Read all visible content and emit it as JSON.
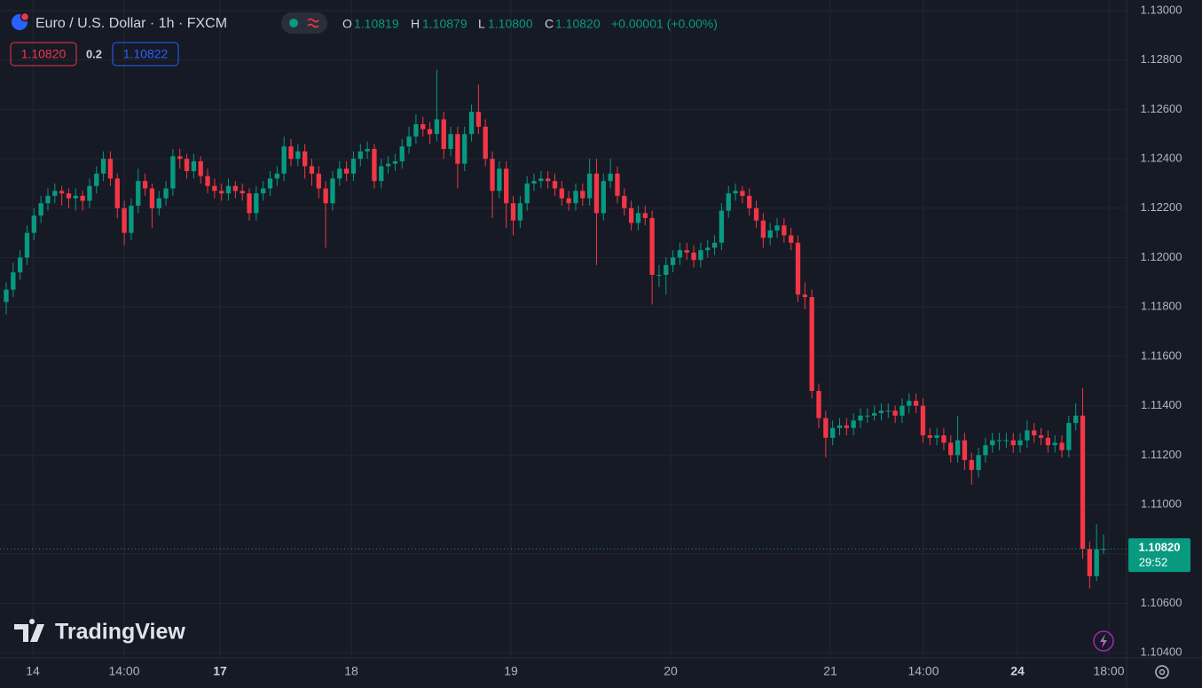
{
  "chart_data": {
    "type": "candlestick",
    "title": "Euro / U.S. Dollar · 1h · FXCM",
    "legend": {
      "open_label": "O",
      "open": "1.10819",
      "high_label": "H",
      "high": "1.10879",
      "low_label": "L",
      "low": "1.10800",
      "close_label": "C",
      "close": "1.10820",
      "change": "+0.00001 (+0.00%)"
    },
    "bid": "1.10820",
    "spread": "0.2",
    "ask": "1.10822",
    "last_price_label": "1.10820",
    "countdown": "29:52",
    "brand": "TradingView",
    "up_color": "#089981",
    "down_color": "#f23645",
    "grid": true,
    "ylim": [
      1.10379,
      1.13043
    ],
    "yticks": [
      {
        "value": 1.13,
        "label": "1.13000"
      },
      {
        "value": 1.128,
        "label": "1.12800"
      },
      {
        "value": 1.126,
        "label": "1.12600"
      },
      {
        "value": 1.124,
        "label": "1.12400"
      },
      {
        "value": 1.122,
        "label": "1.12200"
      },
      {
        "value": 1.12,
        "label": "1.12000"
      },
      {
        "value": 1.118,
        "label": "1.11800"
      },
      {
        "value": 1.116,
        "label": "1.11600"
      },
      {
        "value": 1.114,
        "label": "1.11400"
      },
      {
        "value": 1.112,
        "label": "1.11200"
      },
      {
        "value": 1.11,
        "label": "1.11000"
      },
      {
        "value": 1.108,
        "label": "1.10800"
      },
      {
        "value": 1.106,
        "label": "1.10600"
      },
      {
        "value": 1.104,
        "label": "1.10400"
      }
    ],
    "x_labels": [
      "14",
      "14:00",
      "17",
      "18",
      "19",
      "20",
      "21",
      "14:00",
      "24",
      "18:00"
    ],
    "candles": [
      [
        1.1182,
        1.119,
        1.1177,
        1.1187
      ],
      [
        1.1187,
        1.1198,
        1.1184,
        1.1194
      ],
      [
        1.1194,
        1.1203,
        1.1191,
        1.12
      ],
      [
        1.12,
        1.1213,
        1.1197,
        1.121
      ],
      [
        1.121,
        1.122,
        1.1207,
        1.1217
      ],
      [
        1.1217,
        1.1225,
        1.1214,
        1.1222
      ],
      [
        1.1222,
        1.1228,
        1.1219,
        1.1225
      ],
      [
        1.1225,
        1.123,
        1.1222,
        1.1227
      ],
      [
        1.1227,
        1.1229,
        1.1221,
        1.1226
      ],
      [
        1.1226,
        1.1228,
        1.122,
        1.1224
      ],
      [
        1.1224,
        1.1228,
        1.1219,
        1.1225
      ],
      [
        1.1225,
        1.1227,
        1.1219,
        1.1223
      ],
      [
        1.1223,
        1.1232,
        1.122,
        1.1229
      ],
      [
        1.1229,
        1.1237,
        1.1226,
        1.1234
      ],
      [
        1.1234,
        1.1243,
        1.1231,
        1.124
      ],
      [
        1.124,
        1.1243,
        1.1229,
        1.1232
      ],
      [
        1.1232,
        1.1234,
        1.1216,
        1.122
      ],
      [
        1.122,
        1.1223,
        1.1205,
        1.121
      ],
      [
        1.121,
        1.1224,
        1.1207,
        1.1221
      ],
      [
        1.1221,
        1.1236,
        1.1218,
        1.1231
      ],
      [
        1.1231,
        1.1234,
        1.1225,
        1.1228
      ],
      [
        1.1228,
        1.123,
        1.1212,
        1.122
      ],
      [
        1.122,
        1.1227,
        1.1217,
        1.1224
      ],
      [
        1.1224,
        1.1231,
        1.1221,
        1.1228
      ],
      [
        1.1228,
        1.1244,
        1.1225,
        1.1241
      ],
      [
        1.1241,
        1.1244,
        1.1236,
        1.124
      ],
      [
        1.124,
        1.1242,
        1.1232,
        1.1235
      ],
      [
        1.1235,
        1.1242,
        1.1232,
        1.1239
      ],
      [
        1.1239,
        1.1241,
        1.123,
        1.1233
      ],
      [
        1.1233,
        1.1236,
        1.1226,
        1.1229
      ],
      [
        1.1229,
        1.1232,
        1.1224,
        1.1227
      ],
      [
        1.1227,
        1.123,
        1.1223,
        1.1226
      ],
      [
        1.1226,
        1.1232,
        1.1223,
        1.1229
      ],
      [
        1.1229,
        1.1231,
        1.1224,
        1.1227
      ],
      [
        1.1227,
        1.123,
        1.1223,
        1.1226
      ],
      [
        1.1226,
        1.1228,
        1.1215,
        1.1218
      ],
      [
        1.1218,
        1.1229,
        1.1215,
        1.1226
      ],
      [
        1.1226,
        1.1231,
        1.1223,
        1.1228
      ],
      [
        1.1228,
        1.1235,
        1.1225,
        1.1232
      ],
      [
        1.1232,
        1.1237,
        1.1229,
        1.1234
      ],
      [
        1.1234,
        1.1249,
        1.1231,
        1.1245
      ],
      [
        1.1245,
        1.1248,
        1.1237,
        1.124
      ],
      [
        1.124,
        1.1246,
        1.1237,
        1.1243
      ],
      [
        1.1243,
        1.1246,
        1.1232,
        1.1237
      ],
      [
        1.1237,
        1.124,
        1.1229,
        1.1234
      ],
      [
        1.1234,
        1.1237,
        1.1224,
        1.1228
      ],
      [
        1.1228,
        1.1231,
        1.1204,
        1.1222
      ],
      [
        1.1222,
        1.1235,
        1.1219,
        1.1232
      ],
      [
        1.1232,
        1.1239,
        1.1229,
        1.1236
      ],
      [
        1.1236,
        1.1239,
        1.1231,
        1.1234
      ],
      [
        1.1234,
        1.1243,
        1.1231,
        1.124
      ],
      [
        1.124,
        1.1246,
        1.1237,
        1.1243
      ],
      [
        1.1243,
        1.1247,
        1.124,
        1.1244
      ],
      [
        1.1244,
        1.1246,
        1.1228,
        1.1231
      ],
      [
        1.1231,
        1.124,
        1.1228,
        1.1237
      ],
      [
        1.1237,
        1.1241,
        1.1234,
        1.1238
      ],
      [
        1.1238,
        1.1242,
        1.1235,
        1.1239
      ],
      [
        1.1239,
        1.1248,
        1.1236,
        1.1245
      ],
      [
        1.1245,
        1.1253,
        1.1242,
        1.1249
      ],
      [
        1.1249,
        1.1258,
        1.1246,
        1.1254
      ],
      [
        1.1254,
        1.1257,
        1.1249,
        1.1252
      ],
      [
        1.1252,
        1.1255,
        1.1246,
        1.125
      ],
      [
        1.125,
        1.1276,
        1.1247,
        1.1256
      ],
      [
        1.1256,
        1.1259,
        1.124,
        1.1244
      ],
      [
        1.1244,
        1.1253,
        1.1241,
        1.125
      ],
      [
        1.125,
        1.1253,
        1.1228,
        1.1238
      ],
      [
        1.1238,
        1.1253,
        1.1235,
        1.125
      ],
      [
        1.125,
        1.1262,
        1.1247,
        1.1259
      ],
      [
        1.1259,
        1.127,
        1.125,
        1.1253
      ],
      [
        1.1253,
        1.1256,
        1.1237,
        1.124
      ],
      [
        1.124,
        1.1243,
        1.1216,
        1.1227
      ],
      [
        1.1227,
        1.1239,
        1.1224,
        1.1236
      ],
      [
        1.1236,
        1.1239,
        1.1212,
        1.1222
      ],
      [
        1.1222,
        1.1225,
        1.1209,
        1.1215
      ],
      [
        1.1215,
        1.1225,
        1.1212,
        1.1222
      ],
      [
        1.1222,
        1.1233,
        1.1219,
        1.123
      ],
      [
        1.123,
        1.1234,
        1.1227,
        1.1231
      ],
      [
        1.1231,
        1.1235,
        1.1228,
        1.1232
      ],
      [
        1.1232,
        1.1235,
        1.1228,
        1.1231
      ],
      [
        1.1231,
        1.1234,
        1.1225,
        1.1228
      ],
      [
        1.1228,
        1.1231,
        1.1221,
        1.1224
      ],
      [
        1.1224,
        1.1227,
        1.1219,
        1.1222
      ],
      [
        1.1222,
        1.123,
        1.1219,
        1.1227
      ],
      [
        1.1227,
        1.123,
        1.1221,
        1.1224
      ],
      [
        1.1224,
        1.124,
        1.1221,
        1.1234
      ],
      [
        1.1234,
        1.124,
        1.1197,
        1.1218
      ],
      [
        1.1218,
        1.1234,
        1.1215,
        1.1231
      ],
      [
        1.1231,
        1.124,
        1.1228,
        1.1234
      ],
      [
        1.1234,
        1.1237,
        1.1222,
        1.1225
      ],
      [
        1.1225,
        1.1228,
        1.1217,
        1.122
      ],
      [
        1.122,
        1.1223,
        1.1211,
        1.1214
      ],
      [
        1.1214,
        1.1221,
        1.1211,
        1.1218
      ],
      [
        1.1218,
        1.1221,
        1.1213,
        1.1216
      ],
      [
        1.1216,
        1.1219,
        1.1181,
        1.1193
      ],
      [
        1.1193,
        1.1197,
        1.1188,
        1.1193
      ],
      [
        1.1193,
        1.12,
        1.1185,
        1.1197
      ],
      [
        1.1197,
        1.1203,
        1.1194,
        1.12
      ],
      [
        1.12,
        1.1206,
        1.1197,
        1.1203
      ],
      [
        1.1203,
        1.1206,
        1.1199,
        1.1202
      ],
      [
        1.1202,
        1.1205,
        1.1196,
        1.1199
      ],
      [
        1.1199,
        1.1206,
        1.1196,
        1.1203
      ],
      [
        1.1203,
        1.1207,
        1.12,
        1.1204
      ],
      [
        1.1204,
        1.1209,
        1.1201,
        1.1206
      ],
      [
        1.1206,
        1.1222,
        1.1203,
        1.1219
      ],
      [
        1.1219,
        1.1229,
        1.1216,
        1.1226
      ],
      [
        1.1226,
        1.123,
        1.1223,
        1.1227
      ],
      [
        1.1227,
        1.1229,
        1.1222,
        1.1225
      ],
      [
        1.1225,
        1.1228,
        1.1217,
        1.122
      ],
      [
        1.122,
        1.1223,
        1.1212,
        1.1215
      ],
      [
        1.1215,
        1.1218,
        1.1204,
        1.1208
      ],
      [
        1.1208,
        1.1214,
        1.1205,
        1.1211
      ],
      [
        1.1211,
        1.1216,
        1.1208,
        1.1213
      ],
      [
        1.1213,
        1.1216,
        1.1206,
        1.1209
      ],
      [
        1.1209,
        1.1212,
        1.1203,
        1.1206
      ],
      [
        1.1206,
        1.1209,
        1.1182,
        1.1185
      ],
      [
        1.1185,
        1.119,
        1.1179,
        1.1184
      ],
      [
        1.1184,
        1.1187,
        1.1143,
        1.1146
      ],
      [
        1.1146,
        1.1149,
        1.1131,
        1.1135
      ],
      [
        1.1135,
        1.1138,
        1.1119,
        1.1127
      ],
      [
        1.1127,
        1.1134,
        1.1124,
        1.1131
      ],
      [
        1.1131,
        1.1135,
        1.1128,
        1.1132
      ],
      [
        1.1132,
        1.1135,
        1.1128,
        1.1131
      ],
      [
        1.1131,
        1.1137,
        1.1128,
        1.1134
      ],
      [
        1.1134,
        1.1139,
        1.1131,
        1.1136
      ],
      [
        1.1136,
        1.1139,
        1.1133,
        1.1136
      ],
      [
        1.1136,
        1.114,
        1.1134,
        1.1137
      ],
      [
        1.1137,
        1.1141,
        1.1134,
        1.1138
      ],
      [
        1.1138,
        1.1141,
        1.1135,
        1.1138
      ],
      [
        1.1138,
        1.114,
        1.1133,
        1.1136
      ],
      [
        1.1136,
        1.1143,
        1.1133,
        1.114
      ],
      [
        1.114,
        1.1145,
        1.1137,
        1.1142
      ],
      [
        1.1142,
        1.1145,
        1.1137,
        1.114
      ],
      [
        1.114,
        1.1143,
        1.1125,
        1.1128
      ],
      [
        1.1128,
        1.1131,
        1.1124,
        1.1127
      ],
      [
        1.1127,
        1.1131,
        1.1124,
        1.1128
      ],
      [
        1.1128,
        1.1131,
        1.1122,
        1.1125
      ],
      [
        1.1125,
        1.1128,
        1.1117,
        1.112
      ],
      [
        1.112,
        1.1136,
        1.1117,
        1.1126
      ],
      [
        1.1126,
        1.1129,
        1.1114,
        1.1118
      ],
      [
        1.1118,
        1.1121,
        1.1108,
        1.1114
      ],
      [
        1.1114,
        1.1123,
        1.1111,
        1.112
      ],
      [
        1.112,
        1.1127,
        1.1117,
        1.1124
      ],
      [
        1.1124,
        1.1129,
        1.1121,
        1.1126
      ],
      [
        1.1126,
        1.1129,
        1.1122,
        1.1126
      ],
      [
        1.1126,
        1.1129,
        1.1123,
        1.1126
      ],
      [
        1.1126,
        1.1129,
        1.1121,
        1.1124
      ],
      [
        1.1124,
        1.1129,
        1.1121,
        1.1126
      ],
      [
        1.1126,
        1.1134,
        1.1123,
        1.113
      ],
      [
        1.113,
        1.1133,
        1.1125,
        1.1128
      ],
      [
        1.1128,
        1.1131,
        1.1124,
        1.1127
      ],
      [
        1.1127,
        1.113,
        1.1121,
        1.1124
      ],
      [
        1.1124,
        1.1128,
        1.1121,
        1.1125
      ],
      [
        1.1125,
        1.1128,
        1.1119,
        1.1122
      ],
      [
        1.1122,
        1.1136,
        1.1119,
        1.1133
      ],
      [
        1.1133,
        1.1141,
        1.113,
        1.1136
      ],
      [
        1.1136,
        1.1147,
        1.1078,
        1.1082
      ],
      [
        1.1082,
        1.1085,
        1.1066,
        1.1071
      ],
      [
        1.1071,
        1.1092,
        1.1069,
        1.10819
      ],
      [
        1.10819,
        1.10879,
        1.108,
        1.1082
      ]
    ]
  }
}
